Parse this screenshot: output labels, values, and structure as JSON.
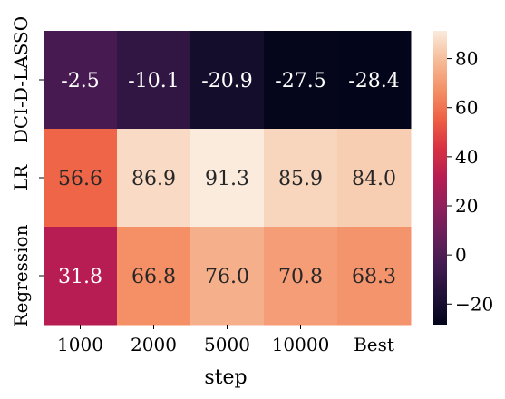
{
  "chart_data": {
    "type": "heatmap",
    "x_categories": [
      "1000",
      "2000",
      "5000",
      "10000",
      "Best"
    ],
    "y_categories": [
      "DCI-D-LASSO",
      "LR",
      "Regression"
    ],
    "values": [
      [
        -2.5,
        -10.1,
        -20.9,
        -27.5,
        -28.4
      ],
      [
        56.6,
        86.9,
        91.3,
        85.9,
        84.0
      ],
      [
        31.8,
        66.8,
        76.0,
        70.8,
        68.3
      ]
    ],
    "cell_labels": [
      [
        "-2.5",
        "-10.1",
        "-20.9",
        "-27.5",
        "-28.4"
      ],
      [
        "56.6",
        "86.9",
        "91.3",
        "85.9",
        "84.0"
      ],
      [
        "31.8",
        "66.8",
        "76.0",
        "70.8",
        "68.3"
      ]
    ],
    "xlabel": "step",
    "ylabel": "",
    "colorbar": {
      "min": -28.4,
      "max": 91.3,
      "ticks": [
        -20,
        0,
        20,
        40,
        60,
        80
      ],
      "tick_labels": [
        "−20",
        "0",
        "20",
        "40",
        "60",
        "80"
      ],
      "colormap": "rocket"
    }
  }
}
